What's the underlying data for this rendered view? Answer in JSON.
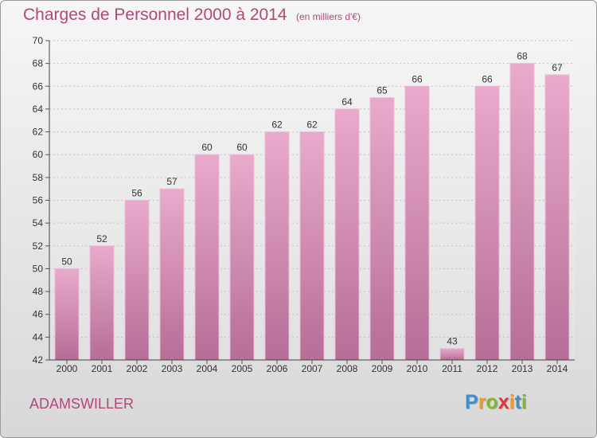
{
  "chart_data": {
    "type": "bar",
    "title": "Charges de Personnel 2000 à 2014",
    "subtitle": "(en milliers d'€)",
    "categories": [
      "2000",
      "2001",
      "2002",
      "2003",
      "2004",
      "2005",
      "2006",
      "2007",
      "2008",
      "2009",
      "2010",
      "2011",
      "2012",
      "2013",
      "2014"
    ],
    "values": [
      50,
      52,
      56,
      57,
      60,
      60,
      62,
      62,
      64,
      65,
      66,
      43,
      66,
      68,
      67
    ],
    "data_labels": [
      "50",
      "52",
      "56",
      "57",
      "60",
      "60",
      "62",
      "62",
      "64",
      "65",
      "66",
      "43",
      "66",
      "68",
      "67"
    ],
    "y_ticks": [
      "42",
      "44",
      "46",
      "48",
      "50",
      "52",
      "54",
      "56",
      "58",
      "60",
      "62",
      "64",
      "66",
      "68",
      "70"
    ],
    "ylim": [
      42,
      70
    ],
    "grid": true,
    "bar_color": "#d98bb6"
  },
  "location": "ADAMSWILLER",
  "logo": {
    "letters": [
      {
        "char": "P",
        "color": "#3e8fd0"
      },
      {
        "char": "r",
        "color": "#f39a1e"
      },
      {
        "char": "o",
        "color": "#7cbb2e"
      },
      {
        "char": "x",
        "color": "#e0343c"
      },
      {
        "char": "i",
        "color": "#f39a1e"
      },
      {
        "char": "t",
        "color": "#3e8fd0"
      },
      {
        "char": "i",
        "color": "#7cbb2e"
      }
    ]
  },
  "colors": {
    "accent": "#b0487a",
    "axis": "#333333"
  }
}
